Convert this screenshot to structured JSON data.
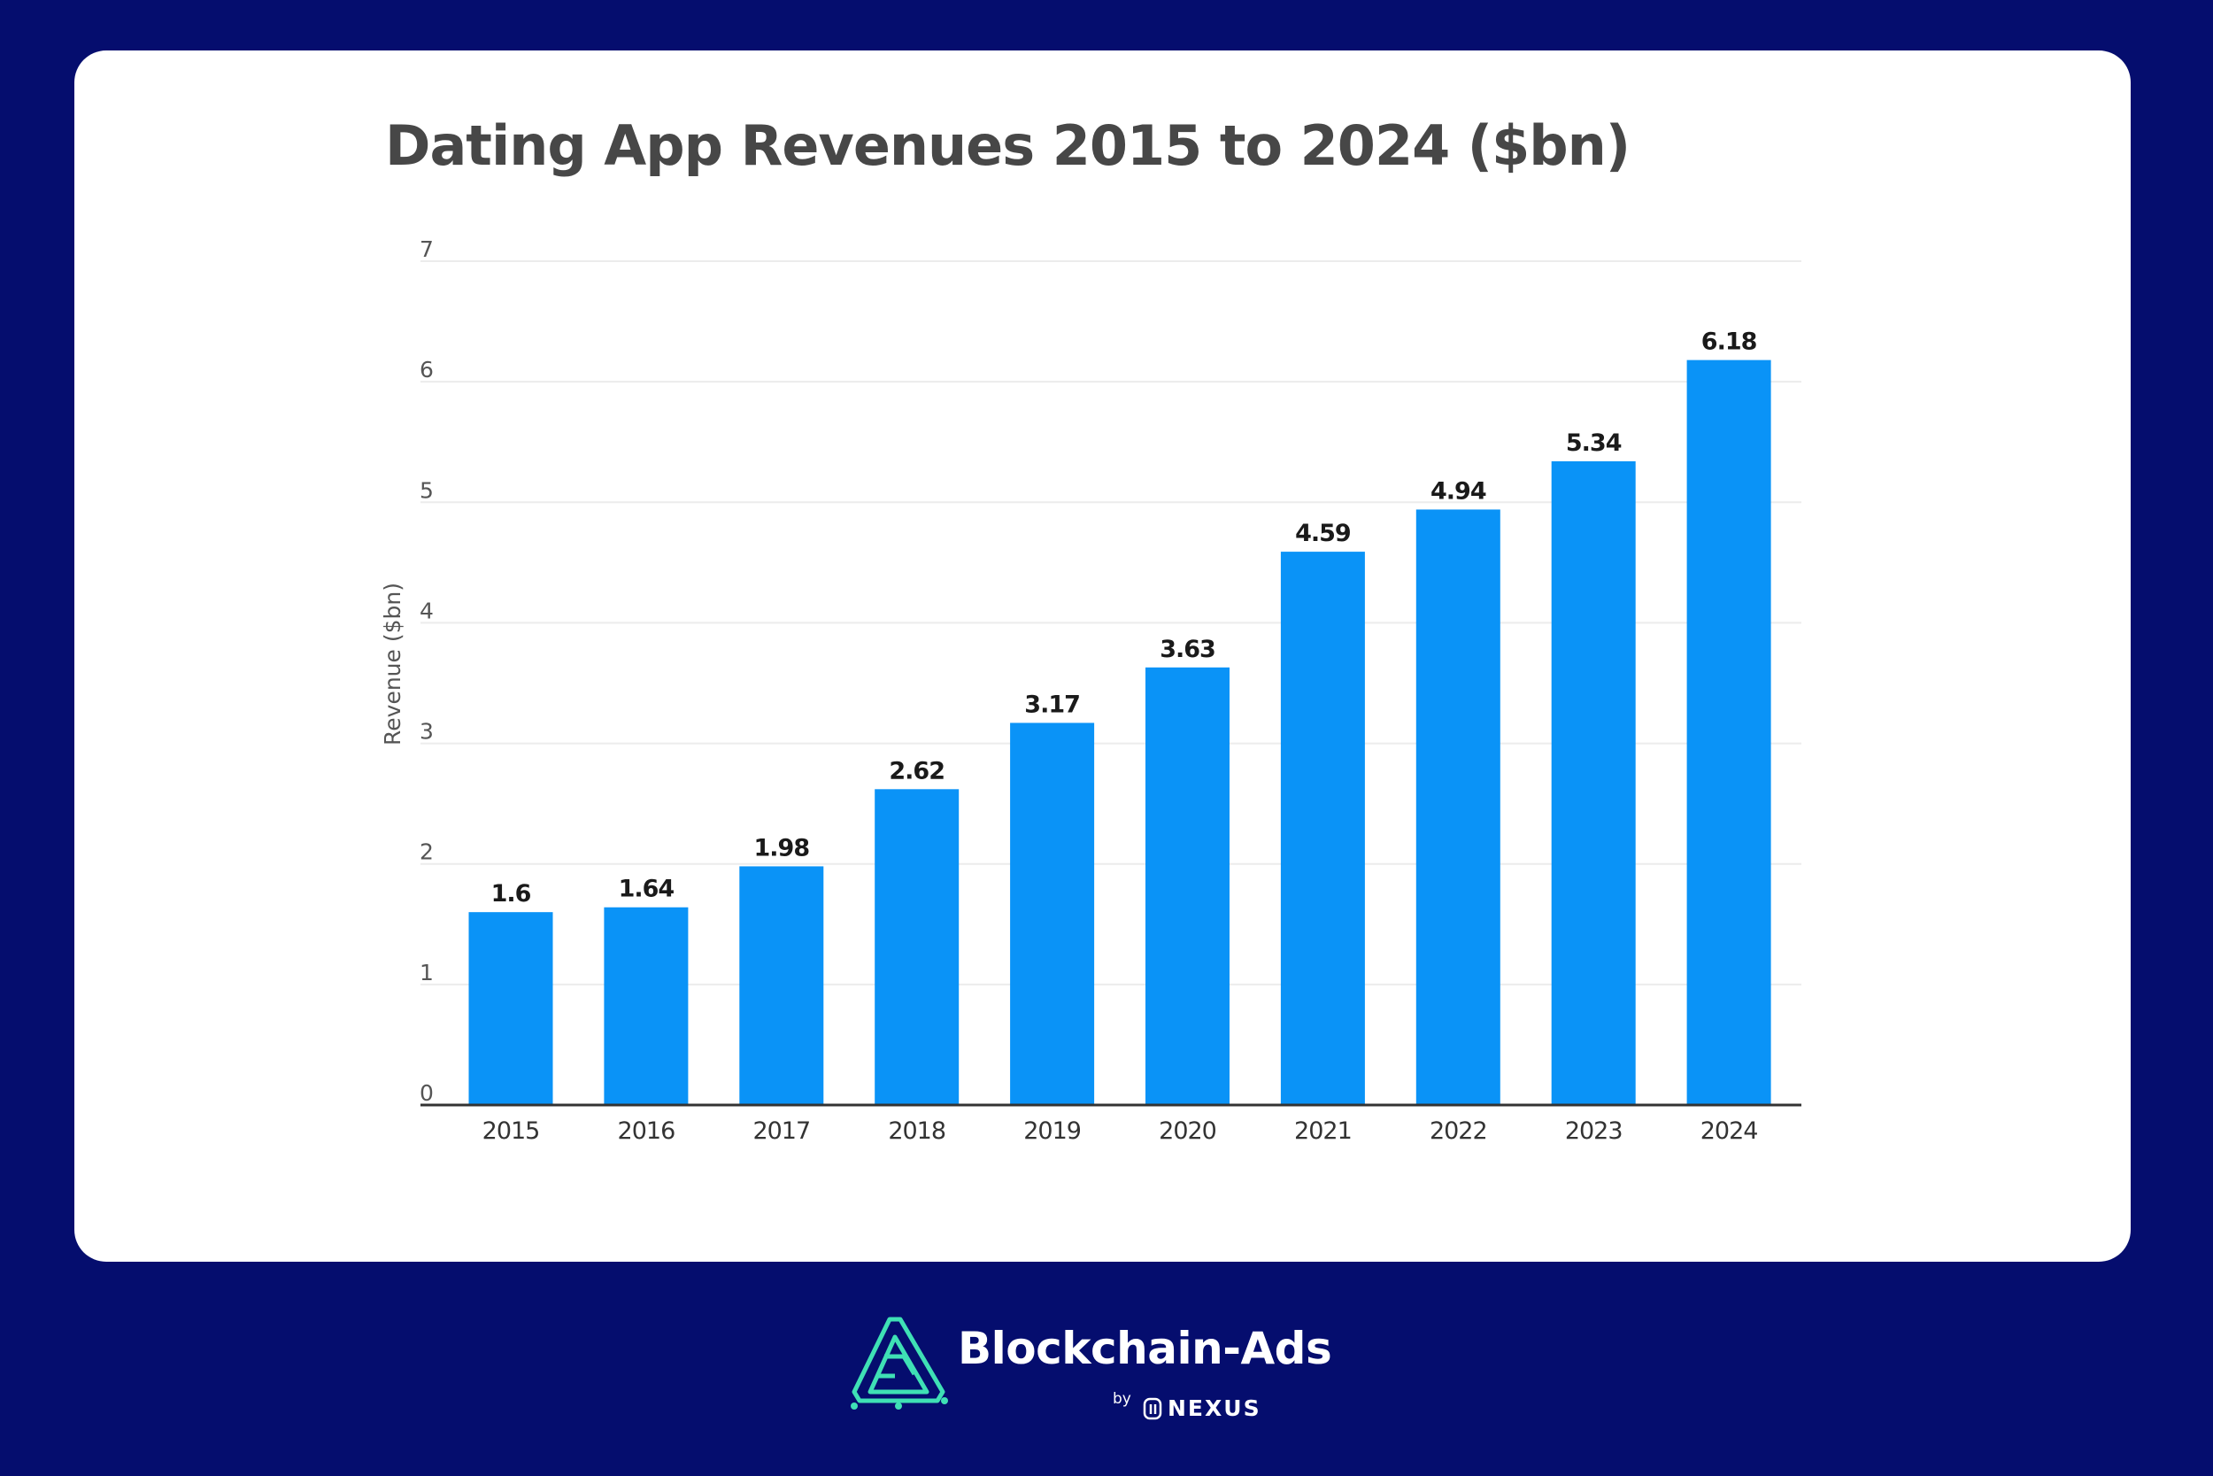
{
  "chart_data": {
    "type": "bar",
    "title": "Dating App Revenues 2015 to 2024 ($bn)",
    "xlabel": "",
    "ylabel": "Revenue ($bn)",
    "categories": [
      "2015",
      "2016",
      "2017",
      "2018",
      "2019",
      "2020",
      "2021",
      "2022",
      "2023",
      "2024"
    ],
    "values": [
      1.6,
      1.64,
      1.98,
      2.62,
      3.17,
      3.63,
      4.59,
      4.94,
      5.34,
      6.18
    ],
    "value_labels": [
      "1.6",
      "1.64",
      "1.98",
      "2.62",
      "3.17",
      "3.63",
      "4.59",
      "4.94",
      "5.34",
      "6.18"
    ],
    "ylim": [
      0,
      7
    ],
    "yticks": [
      "0",
      "1",
      "2",
      "3",
      "4",
      "5",
      "6",
      "7"
    ],
    "grid": true,
    "bar_color": "#0a93f7"
  },
  "brand": {
    "name": "Blockchain-Ads",
    "by": "by",
    "sub": "NEXUS",
    "icon": "blockchain-ads-logo-icon"
  },
  "colors": {
    "background": "#050d6e",
    "card": "#ffffff",
    "logo_accent": "#3fe0b5"
  }
}
